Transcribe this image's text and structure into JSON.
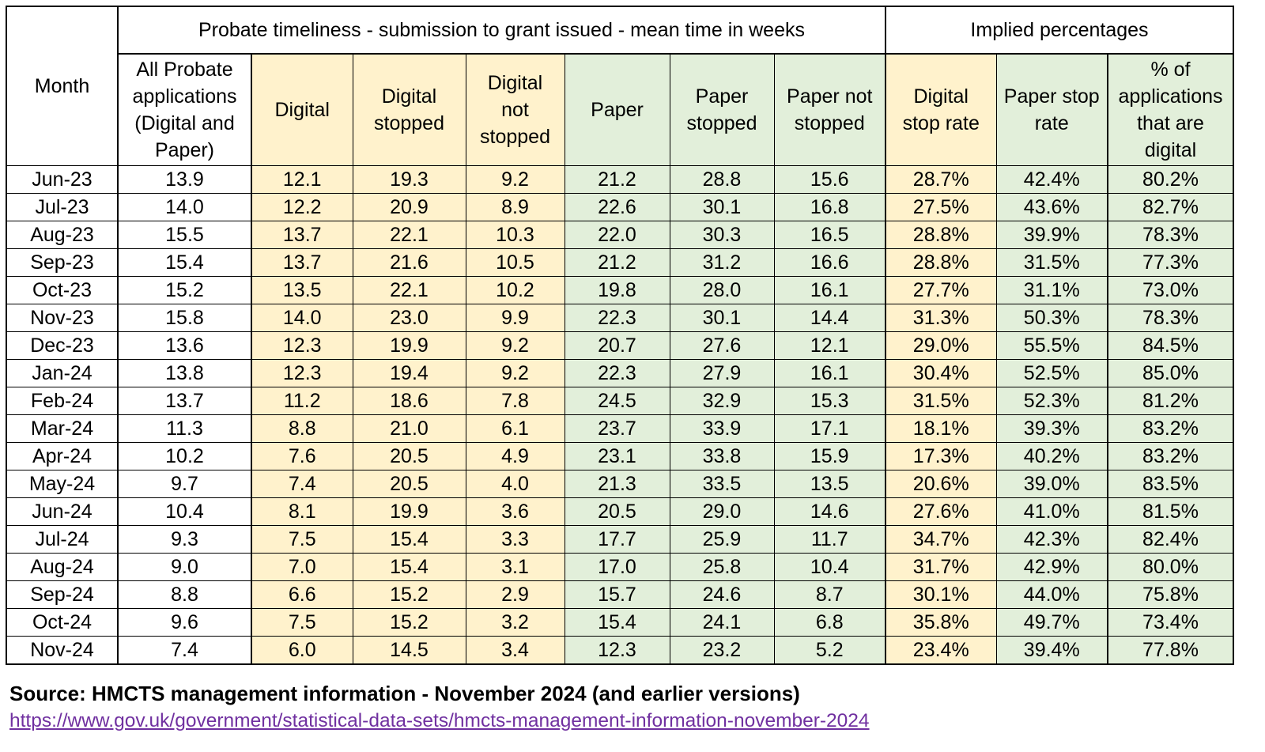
{
  "chart_data": {
    "type": "table",
    "title": "Probate timeliness - submission to grant issued - mean time in weeks",
    "group_right": "Implied percentages",
    "month_header": "Month",
    "columns": [
      {
        "lines": [
          "All Probate",
          "applications",
          "(Digital and",
          "Paper)"
        ]
      },
      {
        "lines": [
          "Digital"
        ]
      },
      {
        "lines": [
          "Digital",
          "stopped"
        ]
      },
      {
        "lines": [
          "Digital",
          "not",
          "stopped"
        ]
      },
      {
        "lines": [
          "Paper"
        ]
      },
      {
        "lines": [
          "Paper",
          "stopped"
        ]
      },
      {
        "lines": [
          "Paper not",
          "stopped"
        ]
      },
      {
        "lines": [
          "Digital",
          "stop rate"
        ]
      },
      {
        "lines": [
          "Paper stop",
          "rate"
        ]
      },
      {
        "lines": [
          "% of",
          "applications",
          "that are",
          "digital"
        ]
      }
    ],
    "rows": [
      [
        "Jun-23",
        "13.9",
        "12.1",
        "19.3",
        "9.2",
        "21.2",
        "28.8",
        "15.6",
        "28.7%",
        "42.4%",
        "80.2%"
      ],
      [
        "Jul-23",
        "14.0",
        "12.2",
        "20.9",
        "8.9",
        "22.6",
        "30.1",
        "16.8",
        "27.5%",
        "43.6%",
        "82.7%"
      ],
      [
        "Aug-23",
        "15.5",
        "13.7",
        "22.1",
        "10.3",
        "22.0",
        "30.3",
        "16.5",
        "28.8%",
        "39.9%",
        "78.3%"
      ],
      [
        "Sep-23",
        "15.4",
        "13.7",
        "21.6",
        "10.5",
        "21.2",
        "31.2",
        "16.6",
        "28.8%",
        "31.5%",
        "77.3%"
      ],
      [
        "Oct-23",
        "15.2",
        "13.5",
        "22.1",
        "10.2",
        "19.8",
        "28.0",
        "16.1",
        "27.7%",
        "31.1%",
        "73.0%"
      ],
      [
        "Nov-23",
        "15.8",
        "14.0",
        "23.0",
        "9.9",
        "22.3",
        "30.1",
        "14.4",
        "31.3%",
        "50.3%",
        "78.3%"
      ],
      [
        "Dec-23",
        "13.6",
        "12.3",
        "19.9",
        "9.2",
        "20.7",
        "27.6",
        "12.1",
        "29.0%",
        "55.5%",
        "84.5%"
      ],
      [
        "Jan-24",
        "13.8",
        "12.3",
        "19.4",
        "9.2",
        "22.3",
        "27.9",
        "16.1",
        "30.4%",
        "52.5%",
        "85.0%"
      ],
      [
        "Feb-24",
        "13.7",
        "11.2",
        "18.6",
        "7.8",
        "24.5",
        "32.9",
        "15.3",
        "31.5%",
        "52.3%",
        "81.2%"
      ],
      [
        "Mar-24",
        "11.3",
        "8.8",
        "21.0",
        "6.1",
        "23.7",
        "33.9",
        "17.1",
        "18.1%",
        "39.3%",
        "83.2%"
      ],
      [
        "Apr-24",
        "10.2",
        "7.6",
        "20.5",
        "4.9",
        "23.1",
        "33.8",
        "15.9",
        "17.3%",
        "40.2%",
        "83.2%"
      ],
      [
        "May-24",
        "9.7",
        "7.4",
        "20.5",
        "4.0",
        "21.3",
        "33.5",
        "13.5",
        "20.6%",
        "39.0%",
        "83.5%"
      ],
      [
        "Jun-24",
        "10.4",
        "8.1",
        "19.9",
        "3.6",
        "20.5",
        "29.0",
        "14.6",
        "27.6%",
        "41.0%",
        "81.5%"
      ],
      [
        "Jul-24",
        "9.3",
        "7.5",
        "15.4",
        "3.3",
        "17.7",
        "25.9",
        "11.7",
        "34.7%",
        "42.3%",
        "82.4%"
      ],
      [
        "Aug-24",
        "9.0",
        "7.0",
        "15.4",
        "3.1",
        "17.0",
        "25.8",
        "10.4",
        "31.7%",
        "42.9%",
        "80.0%"
      ],
      [
        "Sep-24",
        "8.8",
        "6.6",
        "15.2",
        "2.9",
        "15.7",
        "24.6",
        "8.7",
        "30.1%",
        "44.0%",
        "75.8%"
      ],
      [
        "Oct-24",
        "9.6",
        "7.5",
        "15.2",
        "3.2",
        "15.4",
        "24.1",
        "6.8",
        "35.8%",
        "49.7%",
        "73.4%"
      ],
      [
        "Nov-24",
        "7.4",
        "6.0",
        "14.5",
        "3.4",
        "12.3",
        "23.2",
        "5.2",
        "23.4%",
        "39.4%",
        "77.8%"
      ]
    ]
  },
  "source": {
    "text": "Source: HMCTS management information - November 2024 (and earlier versions)",
    "link": "https://www.gov.uk/government/statistical-data-sets/hmcts-management-information-november-2024"
  },
  "colors": {
    "digital_fill": "#fff2cc",
    "paper_fill": "#e2efda",
    "link": "#7030a0"
  }
}
